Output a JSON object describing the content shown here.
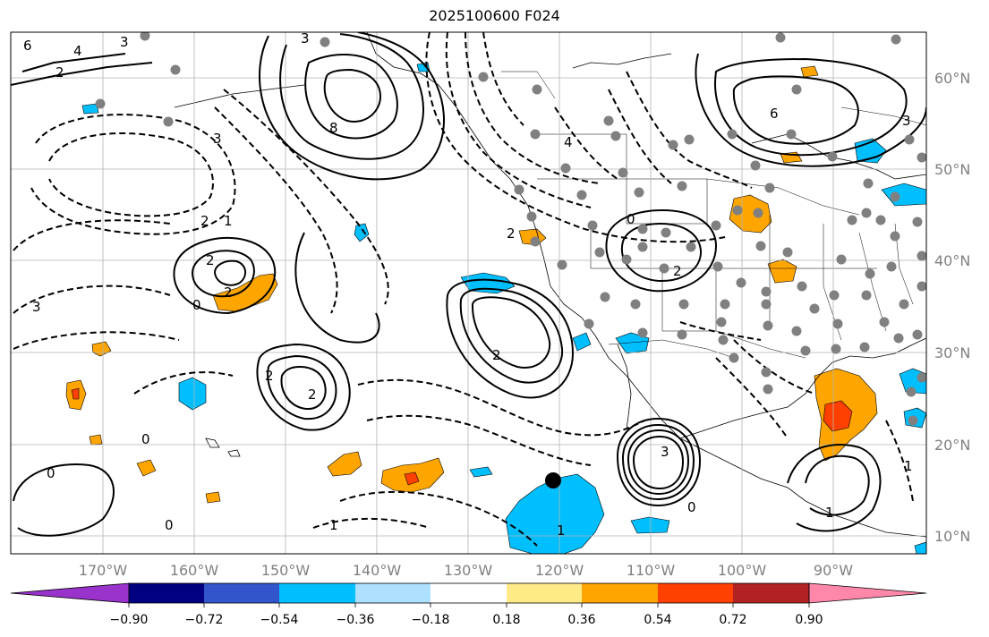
{
  "title": "2025100600 F024",
  "lon_labels": [
    "170°W",
    "160°W",
    "150°W",
    "140°W",
    "130°W",
    "120°W",
    "110°W",
    "100°W",
    "90°W"
  ],
  "lat_labels": [
    "60°N",
    "50°N",
    "40°N",
    "30°N",
    "20°N",
    "10°N"
  ],
  "colorbar": {
    "tick_labels": [
      "−0.90",
      "−0.72",
      "−0.54",
      "−0.36",
      "−0.18",
      "0.18",
      "0.36",
      "0.54",
      "0.72",
      "0.90"
    ],
    "colors": [
      "#9933cc",
      "#000080",
      "#3355cc",
      "#00bfff",
      "#aee0ff",
      "#ffffff",
      "#ffea88",
      "#ffa500",
      "#ff4000",
      "#b22222",
      "#ff88aa",
      "#ff88aa"
    ]
  },
  "shading_colors": {
    "positive": "#ffa500",
    "strong_positive": "#ff4000",
    "negative": "#00bfff",
    "weak_negative": "#aee0ff"
  },
  "contour_labels": [
    "6",
    "4",
    "3",
    "2",
    "8",
    "6",
    "3",
    "2",
    "2",
    "0",
    "3",
    "2",
    "2",
    "0",
    "0",
    "2",
    "2",
    "1",
    "0",
    "1",
    "3",
    "0",
    "1",
    "3",
    "4",
    "2",
    "0",
    "1",
    "2",
    "3",
    "1"
  ]
}
